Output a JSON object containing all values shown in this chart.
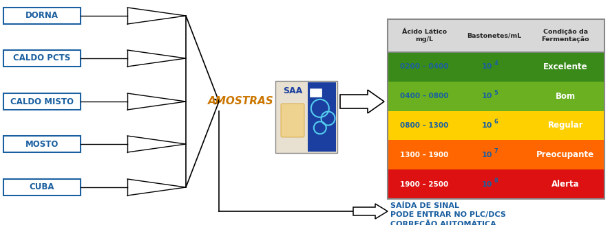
{
  "labels": [
    "DORNA",
    "CALDO PCTS",
    "CALDO MISTO",
    "MOSTO",
    "CUBA"
  ],
  "amostras_text": "AMOSTRAS",
  "table_header": [
    "Ácido Lático\nmg/L",
    "Bastonetes/mL",
    "Condição da\nFermentação"
  ],
  "table_rows": [
    {
      "acido": "0200 – 0400",
      "bast": "10",
      "bast_exp": "4",
      "cond": "Excelente",
      "bg": "#3a8a1a",
      "text_col_acido": "#1a5fa0",
      "text_col_bast": "#1a5fa0",
      "text_col_cond": "#ffffff"
    },
    {
      "acido": "0400 – 0800",
      "bast": "10",
      "bast_exp": "5",
      "cond": "Bom",
      "bg": "#6ab020",
      "text_col_acido": "#1a5fa0",
      "text_col_bast": "#1a5fa0",
      "text_col_cond": "#ffffff"
    },
    {
      "acido": "0800 – 1300",
      "bast": "10",
      "bast_exp": "6",
      "cond": "Regular",
      "bg": "#ffd000",
      "text_col_acido": "#1a5fa0",
      "text_col_bast": "#1a5fa0",
      "text_col_cond": "#ffffff"
    },
    {
      "acido": "1300 – 1900",
      "bast": "10",
      "bast_exp": "7",
      "cond": "Preocupante",
      "bg": "#ff6600",
      "text_col_acido": "#ffffff",
      "text_col_bast": "#1a5fa0",
      "text_col_cond": "#ffffff"
    },
    {
      "acido": "1900 – 2500",
      "bast": "10",
      "bast_exp": "8",
      "cond": "Alerta",
      "bg": "#dd1111",
      "text_col_acido": "#ffffff",
      "text_col_bast": "#1a5fa0",
      "text_col_cond": "#ffffff"
    }
  ],
  "bottom_text": [
    "SAÍDA DE SINAL",
    "PODE ENTRAR NO PLC/DCS",
    "CORREÇÃO AUTOMÁTICA"
  ],
  "bottom_text_color": "#1a5fa0",
  "label_color": "#1a5fa0",
  "amostras_color": "#cc7700",
  "box_border_color": "#888888",
  "arrow_color": "#000000",
  "bg_color": "#ffffff"
}
